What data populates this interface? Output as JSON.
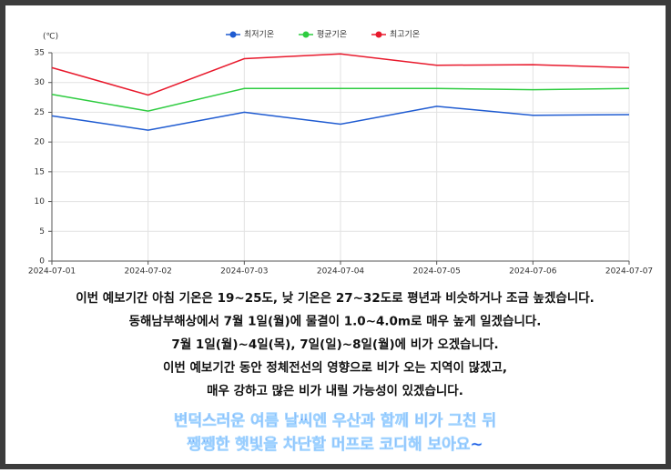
{
  "chart_data": {
    "type": "line",
    "y_unit_label": "(℃)",
    "categories": [
      "2024-07-01",
      "2024-07-02",
      "2024-07-03",
      "2024-07-04",
      "2024-07-05",
      "2024-07-06",
      "2024-07-07"
    ],
    "series": [
      {
        "name": "최저기온",
        "color": "#1f5bd1",
        "values": [
          24.4,
          22.0,
          25.0,
          23.0,
          26.0,
          24.5,
          24.6
        ]
      },
      {
        "name": "평균기온",
        "color": "#2ecc40",
        "values": [
          28.0,
          25.2,
          29.0,
          29.0,
          29.0,
          28.8,
          29.0
        ]
      },
      {
        "name": "최고기온",
        "color": "#e8192c",
        "values": [
          32.5,
          27.9,
          34.0,
          34.8,
          32.9,
          33.0,
          32.5
        ]
      }
    ],
    "ylim": [
      0,
      35
    ],
    "yticks": [
      0,
      5,
      10,
      15,
      20,
      25,
      30,
      35
    ],
    "grid": true
  },
  "notes": {
    "lines": [
      "이번 예보기간 아침 기온은 19~25도, 낮 기온은 27~32도로 평년과 비슷하거나 조금 높겠습니다.",
      "동해남부해상에서 7월 1일(월)에 물결이 1.0~4.0m로 매우 높게 일겠습니다.",
      "7월 1일(월)~4일(목), 7일(일)~8일(월)에 비가 오겠습니다.",
      "이번 예보기간 동안 정체전선의 영향으로 비가 오는 지역이 많겠고,",
      "매우 강하고 많은 비가 내릴 가능성이 있겠습니다."
    ],
    "highlight": [
      "변덕스러운 여름 날씨엔 우산과 함께 비가 그친 뒤",
      "쨍쨍한 햇빛을 차단할 머프로 코디해 보아요~"
    ]
  }
}
